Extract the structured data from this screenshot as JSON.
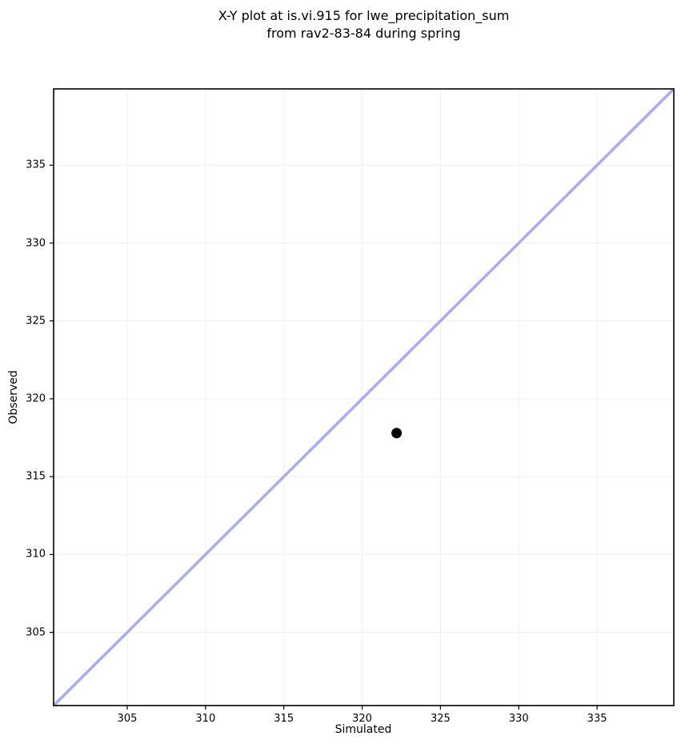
{
  "chart_data": {
    "type": "scatter",
    "title": "X-Y plot at is.vi.915 for lwe_precipitation_sum\nfrom rav2-83-84 during spring",
    "xlabel": "Simulated",
    "ylabel": "Observed",
    "xlim": [
      300.3,
      339.9
    ],
    "ylim": [
      300.3,
      339.9
    ],
    "xticks": [
      305,
      310,
      315,
      320,
      325,
      330,
      335
    ],
    "yticks": [
      305,
      310,
      315,
      320,
      325,
      330,
      335
    ],
    "grid": true,
    "legend": "none",
    "series": [
      {
        "name": "observed-vs-simulated",
        "type": "scatter",
        "marker": "circle",
        "marker_color": "#000000",
        "marker_radius": 6.5,
        "points": [
          {
            "x": 322.2,
            "y": 317.8
          }
        ]
      }
    ],
    "reference_line": {
      "name": "identity-1to1-line",
      "x": [
        300.3,
        339.9
      ],
      "y": [
        300.3,
        339.9
      ],
      "color": "#a9abf5",
      "width": 3.5
    },
    "colors": {
      "background": "#ffffff",
      "grid": "#f0f0f0",
      "spine": "#000000",
      "tick": "#000000",
      "text": "#000000"
    }
  }
}
